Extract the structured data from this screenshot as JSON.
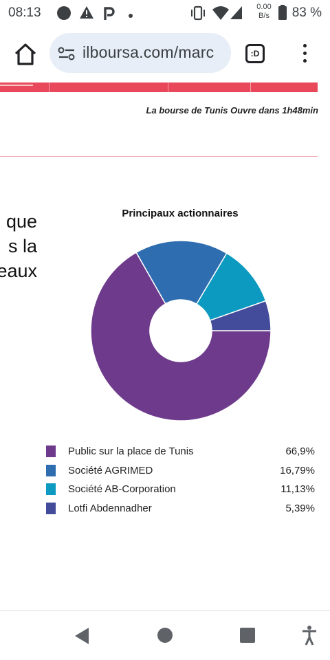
{
  "status_bar": {
    "time": "08:13",
    "net_speed_value": "0.00",
    "net_speed_unit": "B/s",
    "battery": "83 %"
  },
  "browser": {
    "url": "ilboursa.com/marc",
    "tabs_label": ":D"
  },
  "page": {
    "market_status": "La bourse de Tunis Ouvre dans 1h48min",
    "cut_text_lines": [
      "que",
      "s  la",
      "eaux"
    ]
  },
  "chart_data": {
    "type": "pie",
    "donut": true,
    "title": "Principaux actionnaires",
    "categories": [
      "Public sur la place de Tunis",
      "Société AGRIMED",
      "Société AB-Corporation",
      "Lotfi Abdennadher"
    ],
    "values": [
      66.9,
      16.79,
      11.13,
      5.39
    ],
    "value_labels": [
      "66,9%",
      "16,79%",
      "11,13%",
      "5,39%"
    ],
    "colors": [
      "#6d3a8c",
      "#2e6db0",
      "#0c9ac0",
      "#434c9a"
    ],
    "legend_position": "bottom"
  }
}
